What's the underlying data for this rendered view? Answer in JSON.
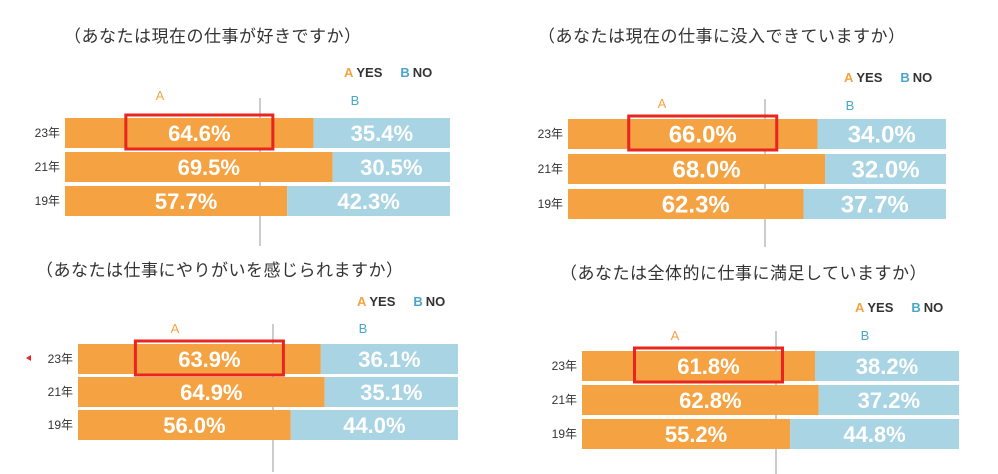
{
  "colors": {
    "yes": "#f5a342",
    "no": "#a9d4e4",
    "yes_text": "#f5a342",
    "no_text": "#4aa6c9",
    "highlight": "#e8251f",
    "divider": "#999999"
  },
  "legend": {
    "a_letter": "A",
    "a_text": "YES",
    "b_letter": "B",
    "b_text": "NO"
  },
  "chart_data": [
    {
      "type": "bar",
      "stacked": true,
      "orientation": "horizontal",
      "title": "（あなたは現在の仕事が好きですか）",
      "categories": [
        "23年",
        "21年",
        "19年"
      ],
      "series": [
        {
          "name": "YES",
          "values": [
            64.6,
            69.5,
            57.7
          ]
        },
        {
          "name": "NO",
          "values": [
            35.4,
            30.5,
            42.3
          ]
        }
      ],
      "labels_yes": [
        "64.6%",
        "69.5%",
        "57.7%"
      ],
      "labels_no": [
        "35.4%",
        "30.5%",
        "42.3%"
      ],
      "col_a": "A",
      "col_b": "B",
      "highlighted_category": "23年"
    },
    {
      "type": "bar",
      "stacked": true,
      "orientation": "horizontal",
      "title": "（あなたは現在の仕事に没入できていますか）",
      "categories": [
        "23年",
        "21年",
        "19年"
      ],
      "series": [
        {
          "name": "YES",
          "values": [
            66.0,
            68.0,
            62.3
          ]
        },
        {
          "name": "NO",
          "values": [
            34.0,
            32.0,
            37.7
          ]
        }
      ],
      "labels_yes": [
        "66.0%",
        "68.0%",
        "62.3%"
      ],
      "labels_no": [
        "34.0%",
        "32.0%",
        "37.7%"
      ],
      "col_a": "A",
      "col_b": "B",
      "highlighted_category": "23年"
    },
    {
      "type": "bar",
      "stacked": true,
      "orientation": "horizontal",
      "title": "（あなたは仕事にやりがいを感じられますか）",
      "categories": [
        "23年",
        "21年",
        "19年"
      ],
      "series": [
        {
          "name": "YES",
          "values": [
            63.9,
            64.9,
            56.0
          ]
        },
        {
          "name": "NO",
          "values": [
            36.1,
            35.1,
            44.0
          ]
        }
      ],
      "labels_yes": [
        "63.9%",
        "64.9%",
        "56.0%"
      ],
      "labels_no": [
        "36.1%",
        "35.1%",
        "44.0%"
      ],
      "col_a": "A",
      "col_b": "B",
      "highlighted_category": "23年"
    },
    {
      "type": "bar",
      "stacked": true,
      "orientation": "horizontal",
      "title": "（あなたは全体的に仕事に満足していますか）",
      "categories": [
        "23年",
        "21年",
        "19年"
      ],
      "series": [
        {
          "name": "YES",
          "values": [
            61.8,
            62.8,
            55.2
          ]
        },
        {
          "name": "NO",
          "values": [
            38.2,
            37.2,
            44.8
          ]
        }
      ],
      "labels_yes": [
        "61.8%",
        "62.8%",
        "55.2%"
      ],
      "labels_no": [
        "38.2%",
        "37.2%",
        "44.8%"
      ],
      "col_a": "A",
      "col_b": "B",
      "highlighted_category": "23年"
    }
  ]
}
